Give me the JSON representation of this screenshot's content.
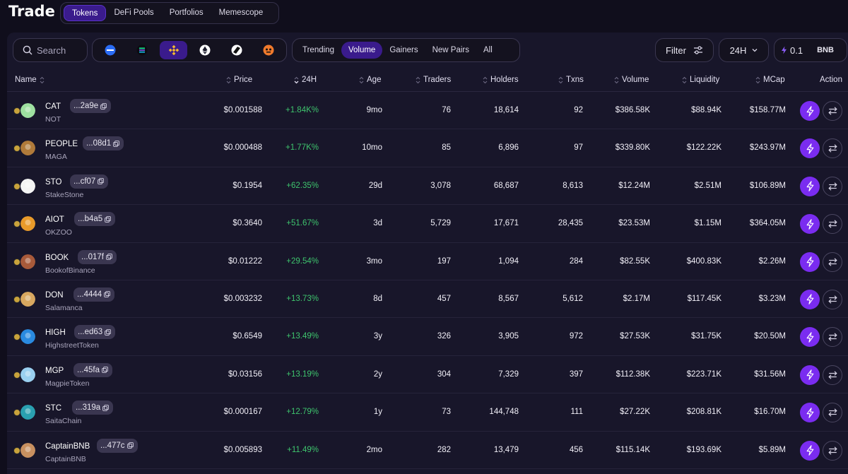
{
  "header": {
    "title": "Trade",
    "tabs": [
      {
        "label": "Tokens",
        "active": true
      },
      {
        "label": "DeFi Pools",
        "active": false
      },
      {
        "label": "Portfolios",
        "active": false
      },
      {
        "label": "Memescope",
        "active": false
      }
    ]
  },
  "toolbar": {
    "search": {
      "placeholder": "Search"
    },
    "chains": [
      {
        "icon": "base-chain-icon",
        "color": "#2a6cf5",
        "active": false
      },
      {
        "icon": "solana-chain-icon",
        "color": "#14f195",
        "active": false
      },
      {
        "icon": "bnb-chain-icon",
        "color": "#f3ba2f",
        "active": true
      },
      {
        "icon": "ethereum-chain-icon",
        "color": "#ffffff",
        "active": false
      },
      {
        "icon": "arbitrum-chain-icon",
        "color": "#ffffff",
        "active": false
      },
      {
        "icon": "blast-chain-icon",
        "color": "#f07a2c",
        "active": false
      }
    ],
    "sort_tabs": [
      {
        "label": "Trending",
        "active": false
      },
      {
        "label": "Volume",
        "active": true
      },
      {
        "label": "Gainers",
        "active": false
      },
      {
        "label": "New Pairs",
        "active": false
      },
      {
        "label": "All",
        "active": false
      }
    ],
    "filter_label": "Filter",
    "period_label": "24H",
    "amount": "0.1",
    "amount_unit": "BNB"
  },
  "columns": {
    "name": "Name",
    "price": "Price",
    "change": "24H",
    "age": "Age",
    "traders": "Traders",
    "holders": "Holders",
    "txns": "Txns",
    "volume": "Volume",
    "liquidity": "Liquidity",
    "mcap": "MCap",
    "action": "Action"
  },
  "colors": {
    "accent": "#7a2cf0",
    "positive": "#3ec46d"
  },
  "rows": [
    {
      "symbol": "CAT",
      "addr": "...2a9e",
      "name": "NOT",
      "price": "$0.001588",
      "change": "+1.84K%",
      "age": "9mo",
      "traders": "76",
      "holders": "18,614",
      "txns": "92",
      "volume": "$386.58K",
      "liquidity": "$88.94K",
      "mcap": "$158.77M",
      "avatar": "#9ee0a0"
    },
    {
      "symbol": "PEOPLE",
      "addr": "...08d1",
      "name": "MAGA",
      "price": "$0.000488",
      "change": "+1.77K%",
      "age": "10mo",
      "traders": "85",
      "holders": "6,896",
      "txns": "97",
      "volume": "$339.80K",
      "liquidity": "$122.22K",
      "mcap": "$243.97M",
      "avatar": "#b07a3a"
    },
    {
      "symbol": "STO",
      "addr": "...cf07",
      "name": "StakeStone",
      "price": "$0.1954",
      "change": "+62.35%",
      "age": "29d",
      "traders": "3,078",
      "holders": "68,687",
      "txns": "8,613",
      "volume": "$12.24M",
      "liquidity": "$2.51M",
      "mcap": "$106.89M",
      "avatar": "#f4f4f4"
    },
    {
      "symbol": "AIOT",
      "addr": "...b4a5",
      "name": "OKZOO",
      "price": "$0.3640",
      "change": "+51.67%",
      "age": "3d",
      "traders": "5,729",
      "holders": "17,671",
      "txns": "28,435",
      "volume": "$23.53M",
      "liquidity": "$1.15M",
      "mcap": "$364.05M",
      "avatar": "#e89a2a"
    },
    {
      "symbol": "BOOK",
      "addr": "...017f",
      "name": "BookofBinance",
      "price": "$0.01222",
      "change": "+29.54%",
      "age": "3mo",
      "traders": "197",
      "holders": "1,094",
      "txns": "284",
      "volume": "$82.55K",
      "liquidity": "$400.83K",
      "mcap": "$2.26M",
      "avatar": "#a85a3a"
    },
    {
      "symbol": "DON",
      "addr": "...4444",
      "name": "Salamanca",
      "price": "$0.003232",
      "change": "+13.73%",
      "age": "8d",
      "traders": "457",
      "holders": "8,567",
      "txns": "5,612",
      "volume": "$2.17M",
      "liquidity": "$117.45K",
      "mcap": "$3.23M",
      "avatar": "#d8a860"
    },
    {
      "symbol": "HIGH",
      "addr": "...ed63",
      "name": "HighstreetToken",
      "price": "$0.6549",
      "change": "+13.49%",
      "age": "3y",
      "traders": "326",
      "holders": "3,905",
      "txns": "972",
      "volume": "$27.53K",
      "liquidity": "$31.75K",
      "mcap": "$20.50M",
      "avatar": "#2a8ae0"
    },
    {
      "symbol": "MGP",
      "addr": "...45fa",
      "name": "MagpieToken",
      "price": "$0.03156",
      "change": "+13.19%",
      "age": "2y",
      "traders": "304",
      "holders": "7,329",
      "txns": "397",
      "volume": "$112.38K",
      "liquidity": "$223.71K",
      "mcap": "$31.56M",
      "avatar": "#9ad0f0"
    },
    {
      "symbol": "STC",
      "addr": "...319a",
      "name": "SaitaChain",
      "price": "$0.000167",
      "change": "+12.79%",
      "age": "1y",
      "traders": "73",
      "holders": "144,748",
      "txns": "111",
      "volume": "$27.22K",
      "liquidity": "$208.81K",
      "mcap": "$16.70M",
      "avatar": "#2aa0b0"
    },
    {
      "symbol": "CaptainBNB",
      "addr": "...477c",
      "name": "CaptainBNB",
      "price": "$0.005893",
      "change": "+11.49%",
      "age": "2mo",
      "traders": "282",
      "holders": "13,479",
      "txns": "456",
      "volume": "$115.14K",
      "liquidity": "$193.69K",
      "mcap": "$5.89M",
      "avatar": "#c89060"
    }
  ]
}
